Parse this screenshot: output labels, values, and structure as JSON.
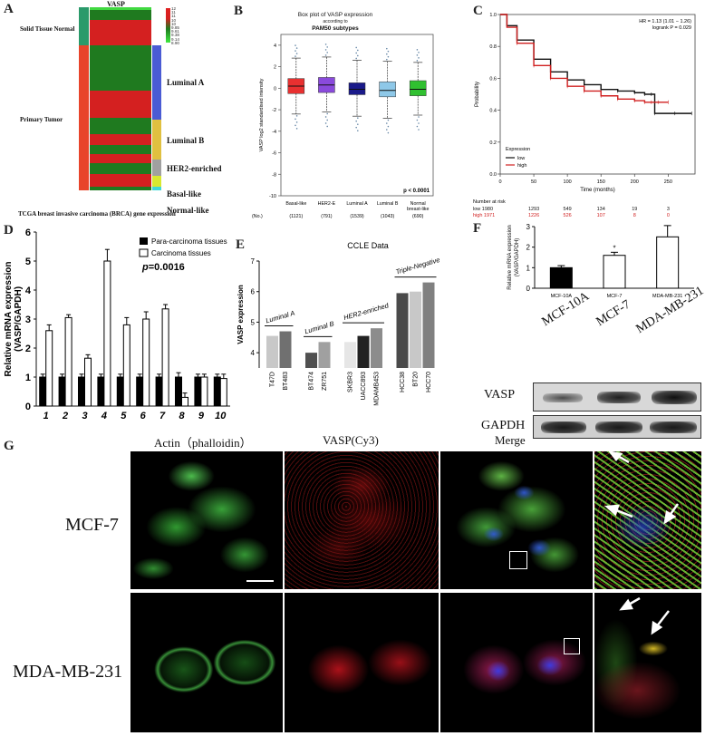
{
  "figure": {
    "panel_letters": [
      "A",
      "B",
      "C",
      "D",
      "E",
      "F",
      "G"
    ]
  },
  "panel_a": {
    "column_header": "VASP",
    "group_labels": [
      "Solid Tissue Normal",
      "Primary Tumor"
    ],
    "subtype_labels": [
      "Luminal A",
      "Luminal B",
      "HER2-enriched",
      "Basal-like",
      "Normal-like"
    ],
    "color_scale_values": [
      "12",
      "11",
      "11",
      "10",
      "10",
      "9.85",
      "9.61",
      "9.38",
      "9.14",
      "8.90"
    ],
    "caption": "TCGA breast invasive carcinoma (BRCA) gene expression",
    "colors": {
      "high": "#d42020",
      "low": "#1f7a1f",
      "group_normal": "#2a9a6a",
      "group_tumor": "#e8442a",
      "luminal_a": "#4a5bd4",
      "luminal_b": "#e0c040",
      "her2": "#a0a0a0",
      "basal": "#d8e830",
      "normal_like": "#40d8d8"
    }
  },
  "panel_b": {
    "title_line1": "Box plot of VASP expression",
    "title_line2": "according to",
    "title_line3": "PAM50 subtypes",
    "ylabel": "VASP log2 standardised intensity",
    "pvalue": "p < 0.0001",
    "n_label": "(No.)",
    "chart_data": {
      "type": "box",
      "title": "Box plot of VASP expression according to PAM50 subtypes",
      "ylabel": "VASP log2 standardised intensity",
      "ylim": [
        -10,
        5
      ],
      "yticks": [
        4,
        2,
        0,
        -2,
        -4,
        -6,
        -8,
        -10
      ],
      "categories": [
        "Basal-like",
        "HER2-E",
        "Luminal A",
        "Luminal B",
        "Normal breast-like"
      ],
      "counts": [
        "(1121)",
        "(791)",
        "(1539)",
        "(1043)",
        "(690)"
      ],
      "boxes": [
        {
          "q1": -0.5,
          "median": 0.2,
          "q3": 0.9,
          "whisker_low": -2.4,
          "whisker_high": 2.8,
          "color": "#e83030"
        },
        {
          "q1": -0.4,
          "median": 0.3,
          "q3": 1.0,
          "whisker_low": -2.2,
          "whisker_high": 2.9,
          "color": "#8a4adc"
        },
        {
          "q1": -0.6,
          "median": -0.1,
          "q3": 0.5,
          "whisker_low": -2.6,
          "whisker_high": 2.6,
          "color": "#1a1a8a"
        },
        {
          "q1": -0.8,
          "median": -0.2,
          "q3": 0.6,
          "whisker_low": -2.8,
          "whisker_high": 2.5,
          "color": "#8ec8e8"
        },
        {
          "q1": -0.7,
          "median": -0.1,
          "q3": 0.7,
          "whisker_low": -2.5,
          "whisker_high": 2.4,
          "color": "#30c030"
        }
      ]
    }
  },
  "panel_c": {
    "hr_text": "HR = 1.13 (1.01 − 1.26)",
    "logrank_text": "logrank P = 0.029",
    "ylabel": "Probability",
    "xlabel": "Time (months)",
    "legend_title": "Expression",
    "legend_low": "low",
    "legend_high": "high",
    "risk_title": "Number at risk",
    "risk_rows": [
      {
        "label": "low 1980",
        "values": [
          "1293",
          "549",
          "134",
          "19",
          "3"
        ],
        "color": "#111111"
      },
      {
        "label": "high 1971",
        "values": [
          "1226",
          "526",
          "107",
          "8",
          "0"
        ],
        "color": "#d02020"
      }
    ],
    "chart_data": {
      "type": "line",
      "xlabel": "Time (months)",
      "ylabel": "Probability",
      "xlim": [
        0,
        290
      ],
      "ylim": [
        0,
        1
      ],
      "xticks": [
        0,
        50,
        100,
        150,
        200,
        250
      ],
      "yticks": [
        0.0,
        0.2,
        0.4,
        0.6,
        0.8,
        1.0
      ],
      "series": [
        {
          "name": "low",
          "color": "#111111",
          "x": [
            0,
            10,
            25,
            50,
            75,
            100,
            125,
            150,
            175,
            200,
            215,
            225,
            230,
            260,
            285
          ],
          "y": [
            1.0,
            0.93,
            0.84,
            0.72,
            0.64,
            0.59,
            0.56,
            0.53,
            0.52,
            0.51,
            0.5,
            0.5,
            0.38,
            0.38,
            0.38
          ]
        },
        {
          "name": "high",
          "color": "#d02020",
          "x": [
            0,
            10,
            25,
            50,
            75,
            100,
            125,
            150,
            175,
            200,
            215,
            225,
            235,
            250
          ],
          "y": [
            1.0,
            0.92,
            0.82,
            0.68,
            0.6,
            0.55,
            0.52,
            0.49,
            0.47,
            0.46,
            0.45,
            0.45,
            0.45,
            0.45
          ]
        }
      ]
    }
  },
  "panel_d": {
    "ylabel": "Relative mRNA expression (VASP/GAPDH)",
    "legend": [
      "Para-carcinoma tissues",
      "Carcinoma tissues"
    ],
    "pvalue_prefix": "p",
    "pvalue": "=0.0016",
    "chart_data": {
      "type": "bar",
      "ylabel": "Relative mRNA expression (VASP/GAPDH)",
      "ylim": [
        0,
        6
      ],
      "yticks": [
        0,
        1,
        2,
        3,
        4,
        5,
        6
      ],
      "categories": [
        "1",
        "2",
        "3",
        "4",
        "5",
        "6",
        "7",
        "8",
        "9",
        "10"
      ],
      "series": [
        {
          "name": "Para-carcinoma tissues",
          "color": "#000000",
          "values": [
            1,
            1,
            1,
            1,
            1,
            1,
            1,
            1,
            1,
            1
          ],
          "errors": [
            0.1,
            0.1,
            0.1,
            0.1,
            0.1,
            0.1,
            0.1,
            0.15,
            0.1,
            0.1
          ]
        },
        {
          "name": "Carcinoma tissues",
          "color": "#ffffff",
          "values": [
            2.6,
            3.05,
            1.65,
            5.0,
            2.8,
            3.0,
            3.35,
            0.3,
            1.0,
            0.95
          ],
          "errors": [
            0.2,
            0.1,
            0.12,
            0.4,
            0.25,
            0.25,
            0.15,
            0.15,
            0.1,
            0.15
          ]
        }
      ]
    }
  },
  "panel_e": {
    "title": "CCLE Data",
    "ylabel": "VASP expression",
    "groups": [
      "Luminal A",
      "Luminal B",
      "HER2-enriched",
      "Triple-Negative"
    ],
    "chart_data": {
      "type": "bar",
      "title": "CCLE Data",
      "ylabel": "VASP expression",
      "ylim": [
        3.5,
        7
      ],
      "yticks": [
        4,
        5,
        6,
        7
      ],
      "categories": [
        "T47D",
        "BT483",
        "BT474",
        "ZR751",
        "SKBR3",
        "UACC893",
        "MDAMB453",
        "HCC38",
        "BT20",
        "HCC70"
      ],
      "values": [
        4.55,
        4.7,
        4.0,
        4.35,
        4.35,
        4.55,
        4.8,
        5.95,
        6.0,
        6.3
      ],
      "colors": [
        "#c8c8c8",
        "#707070",
        "#505050",
        "#a0a0a0",
        "#e6e6e6",
        "#222222",
        "#8c8c8c",
        "#4a4a4a",
        "#c8c8c8",
        "#808080"
      ]
    }
  },
  "panel_f": {
    "ylabel": "Relative mRNA expression (VASP/GAPDH)",
    "sig_marks": [
      "*",
      "*"
    ],
    "lane_labels": [
      "MCF-10A",
      "MCF-7",
      "MDA-MB-231"
    ],
    "blot_lanes": [
      "MCF-10A",
      "MCF-7",
      "MDA-MB-231"
    ],
    "blot_rows": [
      "VASP",
      "GAPDH"
    ],
    "chart_data": {
      "type": "bar",
      "ylabel": "Relative mRNA expression (VASP/GAPDH)",
      "ylim": [
        0,
        3
      ],
      "yticks": [
        0,
        1,
        2,
        3
      ],
      "categories": [
        "MCF-10A",
        "MCF-7",
        "MDA-MB-231"
      ],
      "values": [
        1.0,
        1.6,
        2.5
      ],
      "errors": [
        0.1,
        0.15,
        0.55
      ],
      "colors": [
        "#000000",
        "#ffffff",
        "#ffffff"
      ]
    }
  },
  "panel_g": {
    "column_headers": [
      "Actin（phalloidin）",
      "VASP(Cy3)",
      "Merge"
    ],
    "row_labels": [
      "MCF-7",
      "MDA-MB-231"
    ]
  }
}
